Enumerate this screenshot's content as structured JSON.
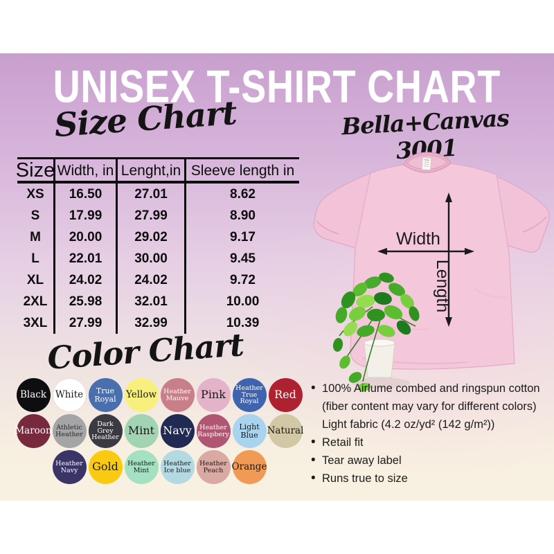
{
  "title": "UNISEX T-SHIRT CHART",
  "product": {
    "name": "Bella+Canvas 3001"
  },
  "size_chart": {
    "heading": "Size Chart",
    "columns": [
      "Size",
      "Width, in",
      "Lenght,in",
      "Sleeve length in"
    ],
    "rows": [
      [
        "XS",
        "16.50",
        "27.01",
        "8.62"
      ],
      [
        "S",
        "17.99",
        "27.99",
        "8.90"
      ],
      [
        "M",
        "20.00",
        "29.02",
        "9.17"
      ],
      [
        "L",
        "22.01",
        "30.00",
        "9.45"
      ],
      [
        "XL",
        "24.02",
        "24.02",
        "9.72"
      ],
      [
        "2XL",
        "25.98",
        "32.01",
        "10.00"
      ],
      [
        "3XL",
        "27.99",
        "32.99",
        "10.39"
      ]
    ]
  },
  "diagram": {
    "width_label": "Width",
    "length_label": "Length"
  },
  "color_chart": {
    "heading": "Color Chart",
    "rows": [
      [
        {
          "name": "Black",
          "color": "#0e0e10",
          "text_color": "#ffffff"
        },
        {
          "name": "White",
          "color": "#ffffff",
          "text_color": "#1a1a1a"
        },
        {
          "name": "True Royal",
          "color": "#4a6fae",
          "text_color": "#ffffff"
        },
        {
          "name": "Yellow",
          "color": "#f8f07e",
          "text_color": "#1a1a1a"
        },
        {
          "name": "Heather Mauve",
          "color": "#c87f8a",
          "text_color": "#ffffff"
        },
        {
          "name": "Pink",
          "color": "#e5b3c9",
          "text_color": "#1a1a1a"
        },
        {
          "name": "Heather True Royal",
          "color": "#3f63ae",
          "text_color": "#ffffff"
        },
        {
          "name": "Red",
          "color": "#ae2130",
          "text_color": "#ffffff"
        }
      ],
      [
        {
          "name": "Maroon",
          "color": "#77293e",
          "text_color": "#ffffff"
        },
        {
          "name": "Athletic Heather",
          "color": "#a5a5a7",
          "text_color": "#2b2b2b"
        },
        {
          "name": "Dark Grey Heather",
          "color": "#3b3a43",
          "text_color": "#ffffff"
        },
        {
          "name": "Mint",
          "color": "#a2d4b3",
          "text_color": "#1a1a1a"
        },
        {
          "name": "Navy",
          "color": "#202a52",
          "text_color": "#ffffff"
        },
        {
          "name": "Heather Raspbery",
          "color": "#b05673",
          "text_color": "#ffffff"
        },
        {
          "name": "Light Blue",
          "color": "#a9d3ee",
          "text_color": "#1a1a1a"
        },
        {
          "name": "Natural",
          "color": "#d3c8a6",
          "text_color": "#1a1a1a"
        }
      ],
      [
        {
          "name": "Heather Navy",
          "color": "#3a3566",
          "text_color": "#ffffff"
        },
        {
          "name": "Gold",
          "color": "#f9ca0f",
          "text_color": "#1a1a1a"
        },
        {
          "name": "Heather Mint",
          "color": "#a6e0c2",
          "text_color": "#1a1a1a"
        },
        {
          "name": "Heather Ice blue",
          "color": "#b4d9e2",
          "text_color": "#1a1a1a"
        },
        {
          "name": "Heather Peach",
          "color": "#d9aaa4",
          "text_color": "#1a1a1a"
        },
        {
          "name": "Orange",
          "color": "#f19a55",
          "text_color": "#1a1a1a"
        }
      ]
    ]
  },
  "details": {
    "bullets": [
      {
        "text": "100% Airlume combed and ringspun cotton (fiber content may vary for different colors)",
        "extra": "Light fabric (4.2 oz/yd² (142 g/m²))"
      },
      {
        "text": "Retail fit",
        "extra": ""
      },
      {
        "text": "Tear away label",
        "extra": ""
      },
      {
        "text": "Runs true to size",
        "extra": ""
      }
    ]
  }
}
